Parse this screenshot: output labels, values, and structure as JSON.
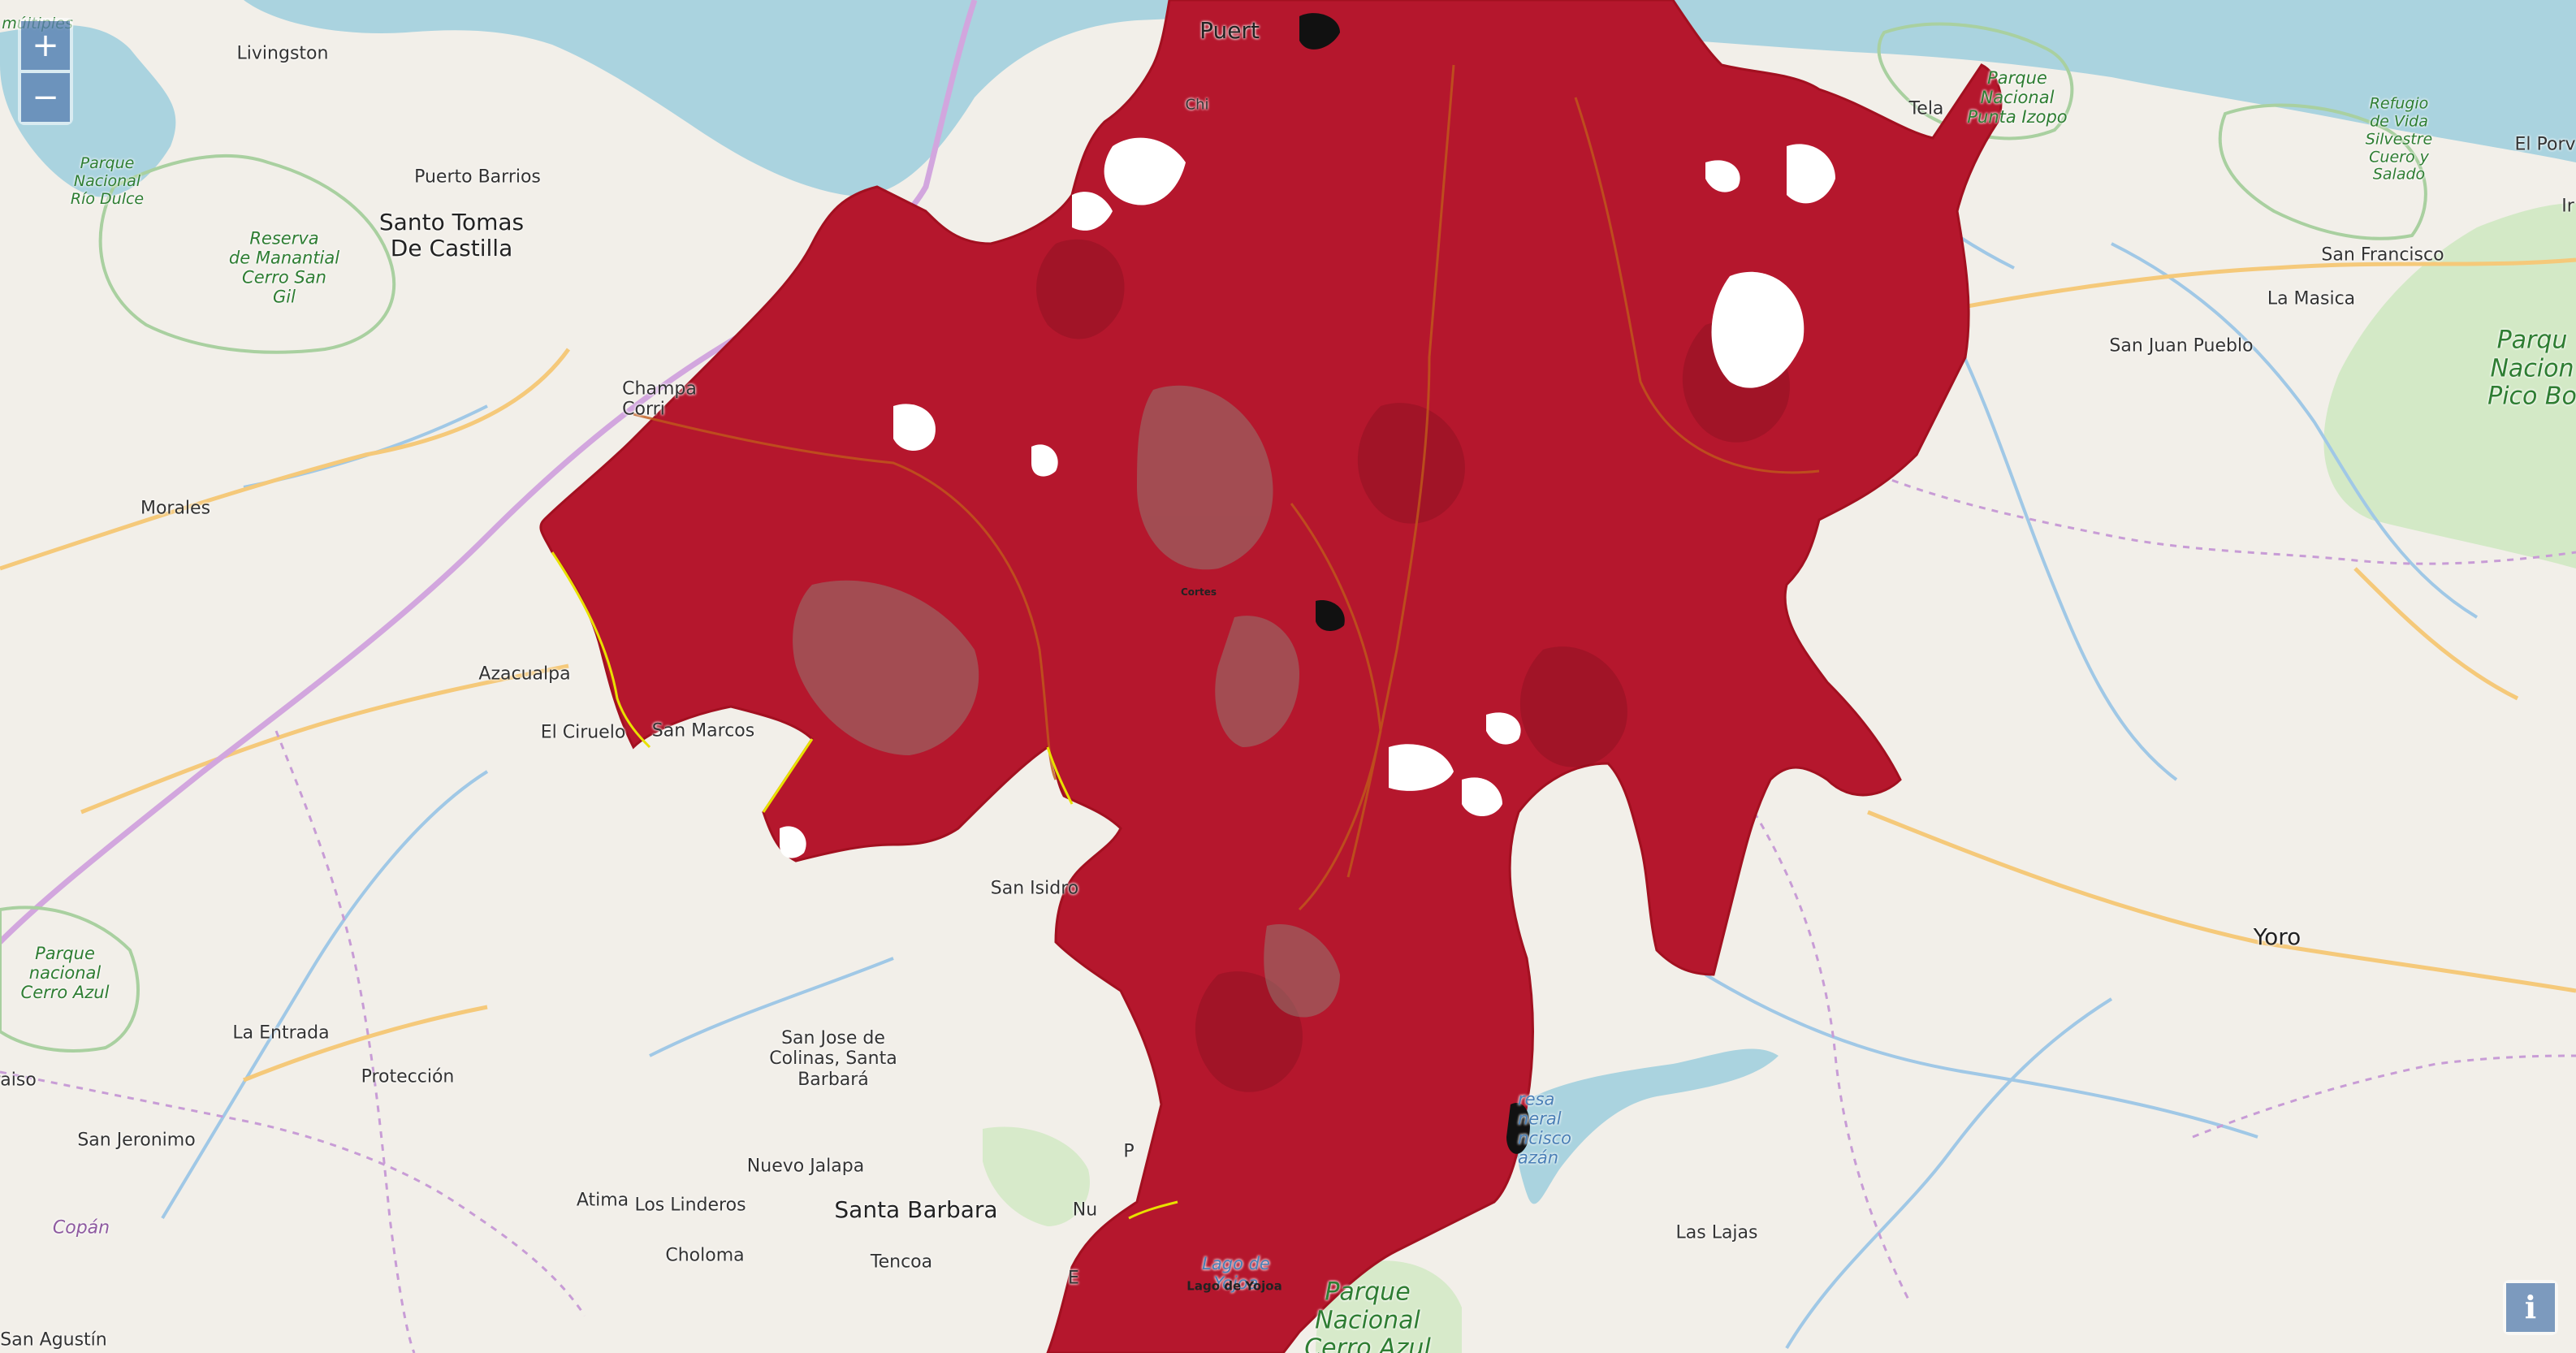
{
  "controls": {
    "zoom_in": "+",
    "zoom_out": "−",
    "info": "i"
  },
  "colors": {
    "land": "#f2efe9",
    "water": "#aad3df",
    "overlay": "#b5172d",
    "park": "#c8e6b5",
    "river": "#a0c8e6",
    "road": "#f5c97a",
    "border": "#c8a0d8"
  },
  "labels": {
    "livingston": "Livingston",
    "puerto_barrios": "Puerto Barrios",
    "santo_tomas": "Santo Tomas\nDe Castilla",
    "reserva": "Reserva\nde Manantial\nCerro San\nGil",
    "parque_rio_dulce": "Parque\nNacional\nRío Dulce",
    "multiples": "múltiples",
    "champa": "Champa\nCorri",
    "morales": "Morales",
    "azacualpa": "Azacualpa",
    "el_ciruelo": "El Ciruelo",
    "san_marcos": "San Marcos",
    "parque_cerro_azul_left": "Parque\nnacional\nCerro Azul",
    "la_entrada": "La Entrada",
    "proteccion": "Protección",
    "raiso": "raiso",
    "san_jeronimo": "San Jeronimo",
    "copan": "Copán",
    "san_agustin": "San Agustín",
    "san_isidro": "San Isidro",
    "san_jose_colinas": "San Jose de\nColinas, Santa\nBarbará",
    "nuevo_jalapa": "Nuevo Jalapa",
    "atima": "Atima",
    "los_linderos": "Los Linderos",
    "santa_barbara": "Santa Barbara",
    "choloma": "Choloma",
    "tencoa": "Tencoa",
    "puerto": "Puert",
    "cortes": "Cortes",
    "lago_yojoa": "Lago de\nYojoa",
    "lago_yojoa_bold": "Lago de Yojoa",
    "parque_cerro_azul_bottom": "Parque\nNacional\nCerro Azul",
    "represa": "resa\nneral\nncisco\nazán",
    "las_lajas": "Las Lajas",
    "yoro": "Yoro",
    "tela": "Tela",
    "parque_punta_izopo": "Parque\nNacional\nPunta Izopo",
    "refugio": "Refugio\nde Vida\nSilvestre\nCuero y\nSalado",
    "el_porvenir": "El Porv",
    "san_francisco": "San Francisco",
    "la_masica": "La Masica",
    "san_juan_pueblo": "San Juan Pueblo",
    "pico_bonito": "Parqu\nNacion\nPico Bo",
    "chi": "Chi",
    "nu": "Nu",
    "p": "P",
    "e": "E",
    "ir": "Ir"
  }
}
